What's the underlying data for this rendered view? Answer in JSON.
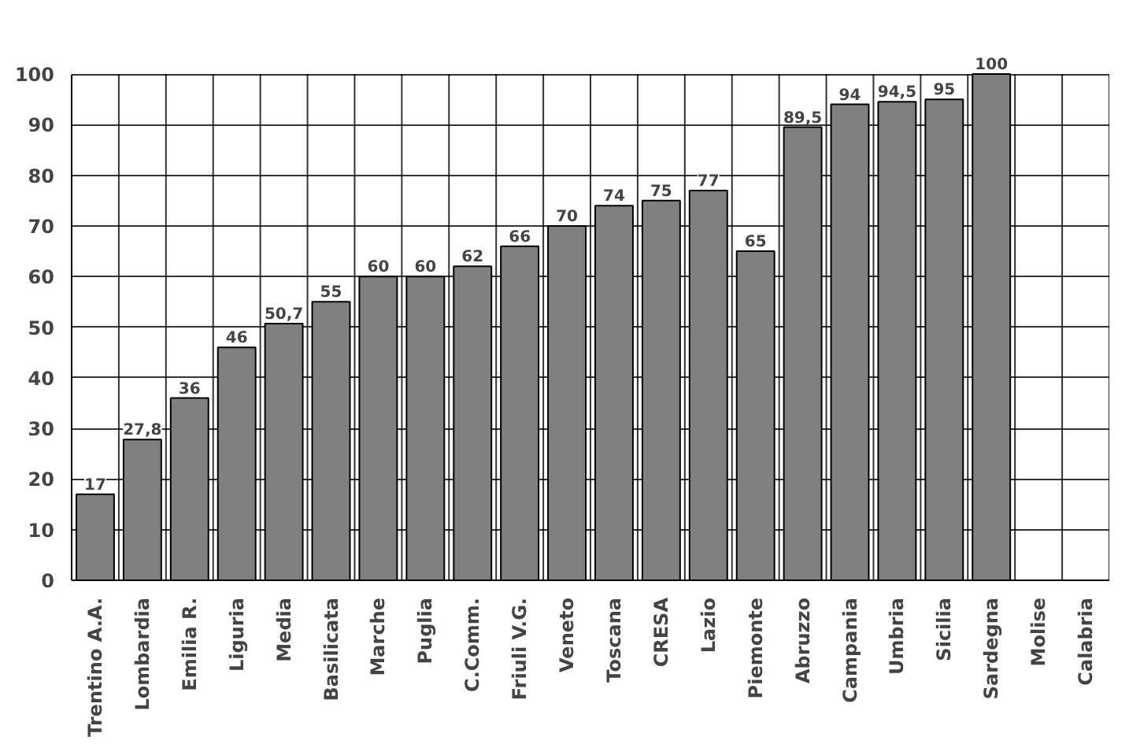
{
  "chart_data": {
    "type": "bar",
    "categories": [
      "Trentino A.A.",
      "Lombardia",
      "Emilia R.",
      "Liguria",
      "Media",
      "Basilicata",
      "Marche",
      "Puglia",
      "C.Comm.",
      "Friuli V.G.",
      "Veneto",
      "Toscana",
      "CRESA",
      "Lazio",
      "Piemonte",
      "Abruzzo",
      "Campania",
      "Umbria",
      "Sicilia",
      "Sardegna",
      "Molise",
      "Calabria"
    ],
    "values": [
      17,
      27.8,
      36,
      46,
      50.7,
      55,
      60,
      60,
      62,
      66,
      70,
      74,
      75,
      77,
      65,
      89.5,
      94,
      94.5,
      95,
      100,
      null,
      null
    ],
    "value_labels": [
      "17",
      "27,8",
      "36",
      "46",
      "50,7",
      "55",
      "60",
      "60",
      "62",
      "66",
      "70",
      "74",
      "75",
      "77",
      "65",
      "89,5",
      "94",
      "94,5",
      "95",
      "100",
      null,
      null
    ],
    "color": "#808080",
    "ylim": [
      0,
      100
    ],
    "yticks": [
      0,
      10,
      20,
      30,
      40,
      50,
      60,
      70,
      80,
      90,
      100
    ],
    "grid": true
  }
}
